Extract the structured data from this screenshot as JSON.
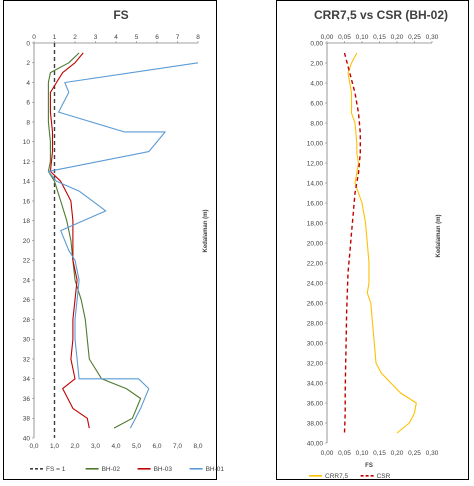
{
  "chart_data": [
    {
      "type": "line",
      "title": "FS",
      "xlabel": "",
      "ylabel": "Kedalaman (m)",
      "xlim": [
        0,
        8
      ],
      "ylim": [
        0,
        40
      ],
      "y_inverted": true,
      "x_axis_position": "top",
      "grid": false,
      "x_ticks": [
        "0",
        "1",
        "2",
        "3",
        "4",
        "5",
        "6",
        "7",
        "8"
      ],
      "x_ticks_bottom": [
        "0,0",
        "1,0",
        "2,0",
        "3,0",
        "4,0",
        "5,0",
        "6,0",
        "7,0",
        "8,0"
      ],
      "y_ticks": [
        "0",
        "2",
        "4",
        "6",
        "8",
        "10",
        "12",
        "14",
        "16",
        "18",
        "20",
        "22",
        "24",
        "26",
        "28",
        "30",
        "32",
        "34",
        "36",
        "38",
        "40"
      ],
      "legend_position": "bottom",
      "series": [
        {
          "name": "FS = 1",
          "color": "#404040",
          "dash": "dashed",
          "points": [
            [
              1.0,
              0
            ],
            [
              1.0,
              40
            ]
          ]
        },
        {
          "name": "BH-02",
          "color": "#4e7a2e",
          "dash": "solid",
          "points": [
            [
              2.2,
              1
            ],
            [
              1.7,
              2
            ],
            [
              0.8,
              3
            ],
            [
              0.7,
              4
            ],
            [
              0.7,
              6
            ],
            [
              0.7,
              8
            ],
            [
              0.8,
              10
            ],
            [
              0.8,
              12
            ],
            [
              0.7,
              13
            ],
            [
              1.0,
              14
            ],
            [
              1.3,
              16
            ],
            [
              1.6,
              18
            ],
            [
              1.8,
              20
            ],
            [
              1.9,
              22
            ],
            [
              2.0,
              24
            ],
            [
              2.3,
              26
            ],
            [
              2.5,
              28
            ],
            [
              2.6,
              30
            ],
            [
              2.7,
              32
            ],
            [
              3.3,
              34
            ],
            [
              4.5,
              35
            ],
            [
              5.2,
              36
            ],
            [
              4.8,
              38
            ],
            [
              3.9,
              39
            ]
          ]
        },
        {
          "name": "BH-03",
          "color": "#c00000",
          "dash": "solid",
          "points": [
            [
              2.4,
              1
            ],
            [
              2.0,
              2
            ],
            [
              1.4,
              3
            ],
            [
              1.1,
              4
            ],
            [
              0.8,
              5
            ],
            [
              0.8,
              7
            ],
            [
              0.9,
              9
            ],
            [
              0.9,
              11
            ],
            [
              0.8,
              13
            ],
            [
              1.3,
              14
            ],
            [
              1.8,
              16
            ],
            [
              1.9,
              18
            ],
            [
              1.9,
              20
            ],
            [
              1.9,
              22
            ],
            [
              2.1,
              24
            ],
            [
              2.0,
              26
            ],
            [
              1.9,
              28
            ],
            [
              1.9,
              30
            ],
            [
              1.8,
              32
            ],
            [
              2.0,
              34
            ],
            [
              1.4,
              35
            ],
            [
              1.9,
              37
            ],
            [
              2.6,
              38
            ],
            [
              2.7,
              39
            ]
          ]
        },
        {
          "name": "BH-01",
          "color": "#5b9bd5",
          "dash": "solid",
          "points": [
            [
              8.0,
              2
            ],
            [
              1.5,
              4
            ],
            [
              1.7,
              5
            ],
            [
              1.2,
              7
            ],
            [
              4.4,
              9
            ],
            [
              6.4,
              9
            ],
            [
              5.6,
              11
            ],
            [
              0.7,
              13
            ],
            [
              1.1,
              14
            ],
            [
              2.2,
              15
            ],
            [
              3.5,
              17
            ],
            [
              2.4,
              18
            ],
            [
              1.3,
              19
            ],
            [
              1.7,
              21
            ],
            [
              2.0,
              22
            ],
            [
              2.2,
              24
            ],
            [
              2.1,
              26
            ],
            [
              2.0,
              28
            ],
            [
              2.0,
              30
            ],
            [
              2.1,
              32
            ],
            [
              2.2,
              34
            ],
            [
              5.1,
              34
            ],
            [
              5.6,
              35
            ],
            [
              5.2,
              37
            ],
            [
              4.7,
              39
            ]
          ]
        }
      ]
    },
    {
      "type": "line",
      "title": "CRR7,5 vs CSR (BH-02)",
      "xlabel": "FS",
      "ylabel": "Kedalaman (m)",
      "xlim": [
        0,
        0.3
      ],
      "ylim": [
        0,
        40
      ],
      "y_inverted": true,
      "x_axis_position": "top",
      "grid": false,
      "x_ticks": [
        "0,00",
        "0,05",
        "0,10",
        "0,15",
        "0,20",
        "0,25",
        "0,30"
      ],
      "x_ticks_bottom": [
        "0,00",
        "0,05",
        "0,10",
        "0,15",
        "0,20",
        "0,25",
        "0,30"
      ],
      "y_ticks": [
        "0,00",
        "2,00",
        "4,00",
        "6,00",
        "8,00",
        "10,00",
        "12,00",
        "14,00",
        "16,00",
        "18,00",
        "20,00",
        "22,00",
        "24,00",
        "26,00",
        "28,00",
        "30,00",
        "32,00",
        "34,00",
        "36,00",
        "38,00",
        "40,00"
      ],
      "legend_position": "bottom",
      "series": [
        {
          "name": "CRR7,5",
          "color": "#ffc000",
          "dash": "solid",
          "points": [
            [
              0.085,
              1
            ],
            [
              0.07,
              2
            ],
            [
              0.06,
              3
            ],
            [
              0.065,
              4
            ],
            [
              0.07,
              5
            ],
            [
              0.07,
              7
            ],
            [
              0.08,
              8
            ],
            [
              0.085,
              10
            ],
            [
              0.085,
              11
            ],
            [
              0.09,
              12
            ],
            [
              0.085,
              13
            ],
            [
              0.08,
              14
            ],
            [
              0.1,
              16
            ],
            [
              0.11,
              18
            ],
            [
              0.115,
              20
            ],
            [
              0.12,
              22
            ],
            [
              0.12,
              24
            ],
            [
              0.115,
              25
            ],
            [
              0.125,
              26
            ],
            [
              0.13,
              28
            ],
            [
              0.135,
              30
            ],
            [
              0.14,
              32
            ],
            [
              0.155,
              33
            ],
            [
              0.21,
              35
            ],
            [
              0.255,
              36
            ],
            [
              0.25,
              37
            ],
            [
              0.235,
              38
            ],
            [
              0.2,
              39
            ]
          ]
        },
        {
          "name": "CSR",
          "color": "#c00000",
          "dash": "dashed",
          "points": [
            [
              0.05,
              1
            ],
            [
              0.065,
              3
            ],
            [
              0.08,
              5
            ],
            [
              0.09,
              7
            ],
            [
              0.095,
              9
            ],
            [
              0.095,
              11
            ],
            [
              0.09,
              13
            ],
            [
              0.08,
              15
            ],
            [
              0.075,
              17
            ],
            [
              0.07,
              19
            ],
            [
              0.065,
              21
            ],
            [
              0.06,
              23
            ],
            [
              0.058,
              25
            ],
            [
              0.056,
              27
            ],
            [
              0.055,
              29
            ],
            [
              0.054,
              31
            ],
            [
              0.053,
              33
            ],
            [
              0.052,
              35
            ],
            [
              0.052,
              37
            ],
            [
              0.05,
              39
            ]
          ]
        }
      ]
    }
  ]
}
